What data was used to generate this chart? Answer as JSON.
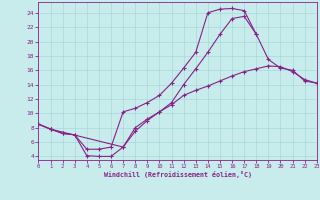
{
  "bg_color": "#c8ecec",
  "grid_color": "#a8d8d8",
  "line_color": "#882288",
  "xlabel": "Windchill (Refroidissement éolien,°C)",
  "xlim": [
    0,
    23
  ],
  "ylim": [
    3.5,
    25.5
  ],
  "xticks": [
    0,
    1,
    2,
    3,
    4,
    5,
    6,
    7,
    8,
    9,
    10,
    11,
    12,
    13,
    14,
    15,
    16,
    17,
    18,
    19,
    20,
    21,
    22,
    23
  ],
  "yticks": [
    4,
    6,
    8,
    10,
    12,
    14,
    16,
    18,
    20,
    22,
    24
  ],
  "curve_top_x": [
    0,
    1,
    2,
    3,
    4,
    5,
    6,
    7,
    8,
    9,
    10,
    11,
    12,
    13,
    14,
    15,
    16,
    17,
    18,
    19,
    20,
    21,
    22,
    23
  ],
  "curve_top_y": [
    8.5,
    7.8,
    7.2,
    7.0,
    5.0,
    5.0,
    5.3,
    10.2,
    10.7,
    11.5,
    12.5,
    14.2,
    16.3,
    18.5,
    24.0,
    24.5,
    24.6,
    24.3,
    21.0,
    17.5,
    16.3,
    16.0,
    14.5,
    14.2
  ],
  "curve_mid_x": [
    0,
    1,
    2,
    3,
    4,
    5,
    6,
    7,
    8,
    9,
    10,
    11,
    12,
    13,
    14,
    15,
    16,
    17,
    18
  ],
  "curve_mid_y": [
    8.5,
    7.8,
    7.2,
    7.0,
    4.1,
    4.0,
    4.0,
    5.3,
    7.5,
    9.0,
    10.2,
    11.5,
    14.0,
    16.2,
    18.5,
    21.0,
    23.2,
    23.5,
    21.0
  ],
  "curve_bot_x": [
    0,
    1,
    7,
    8,
    9,
    10,
    11,
    12,
    13,
    14,
    15,
    16,
    17,
    18,
    19,
    20,
    21,
    22,
    23
  ],
  "curve_bot_y": [
    8.5,
    7.8,
    5.3,
    8.0,
    9.2,
    10.2,
    11.2,
    12.5,
    13.2,
    13.8,
    14.5,
    15.2,
    15.8,
    16.2,
    16.6,
    16.5,
    15.8,
    14.7,
    14.2
  ]
}
